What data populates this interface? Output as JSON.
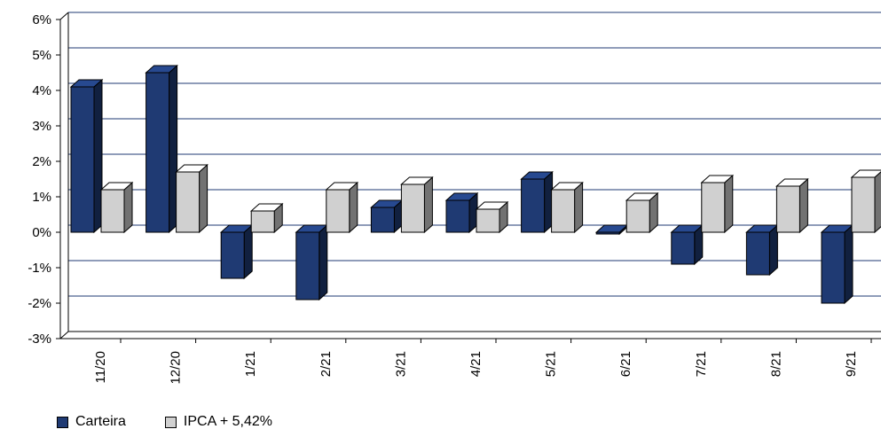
{
  "chart_data": {
    "type": "bar",
    "categories": [
      "11/20",
      "12/20",
      "1/21",
      "2/21",
      "3/21",
      "4/21",
      "5/21",
      "6/21",
      "7/21",
      "8/21",
      "9/21"
    ],
    "series": [
      {
        "name": "Carteira",
        "color": "#1f3a73",
        "values": [
          4.1,
          4.5,
          -1.3,
          -1.9,
          0.7,
          0.9,
          1.5,
          -0.05,
          -0.9,
          -1.2,
          -2.0
        ]
      },
      {
        "name": "IPCA + 5,42%",
        "color": "#d0d0d0",
        "values": [
          1.2,
          1.7,
          0.6,
          1.2,
          1.35,
          0.65,
          1.2,
          0.9,
          1.4,
          1.3,
          1.55
        ]
      }
    ],
    "y_ticks": [
      "6%",
      "5%",
      "4%",
      "3%",
      "2%",
      "1%",
      "0%",
      "-1%",
      "-2%",
      "-3%"
    ],
    "ylim": [
      -3,
      6
    ],
    "grid": true,
    "legend_position": "bottom-left",
    "style": "3d"
  }
}
